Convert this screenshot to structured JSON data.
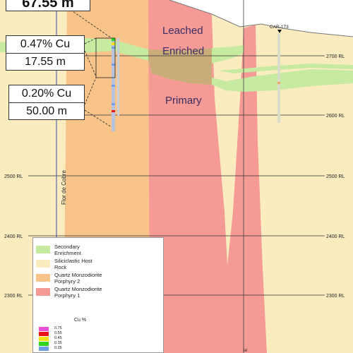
{
  "callouts": [
    {
      "lines": [
        "67.55 m"
      ]
    },
    {
      "lines": [
        "0.47% Cu",
        "17.55 m"
      ]
    },
    {
      "lines": [
        "0.20% Cu",
        "50.00 m"
      ]
    }
  ],
  "zones": {
    "leached": "Leached",
    "enriched": "Enriched",
    "primary": "Primary"
  },
  "drillhole_label": "CAR-173",
  "vertical_label": "Flor de Cobre",
  "east_marker": "E",
  "rl_levels": [
    "2700 RL",
    "2600 RL",
    "2500 RL",
    "2400 RL",
    "2300 RL"
  ],
  "legend": {
    "items": [
      {
        "label": "Secondary\nEnrichment",
        "color": "#c6eaa0"
      },
      {
        "label": "Siliciclastic Host\nRock",
        "color": "#fbecc0"
      },
      {
        "label": "Quartz Monzodiorite\nPorphyry 2",
        "color": "#f8c48a"
      },
      {
        "label": "Quartz Monzodiorite\nPorphyry 1",
        "color": "#f59a94"
      }
    ],
    "cu_title": "Cu %",
    "cu_items": [
      {
        "label": "0.75",
        "color": "#e84fd6"
      },
      {
        "label": "0.55",
        "color": "#e8141a"
      },
      {
        "label": "0.45",
        "color": "#f2e21a"
      },
      {
        "label": "0.35",
        "color": "#2fd41e"
      },
      {
        "label": "0.25",
        "color": "#6f9fe8"
      }
    ]
  },
  "colors": {
    "host_rock": "#fbecc0",
    "porphyry2": "#f8c48a",
    "porphyry1": "#f59a94",
    "enrichment": "#c6eaa0",
    "enriched_overlap": "#c9ac78"
  }
}
